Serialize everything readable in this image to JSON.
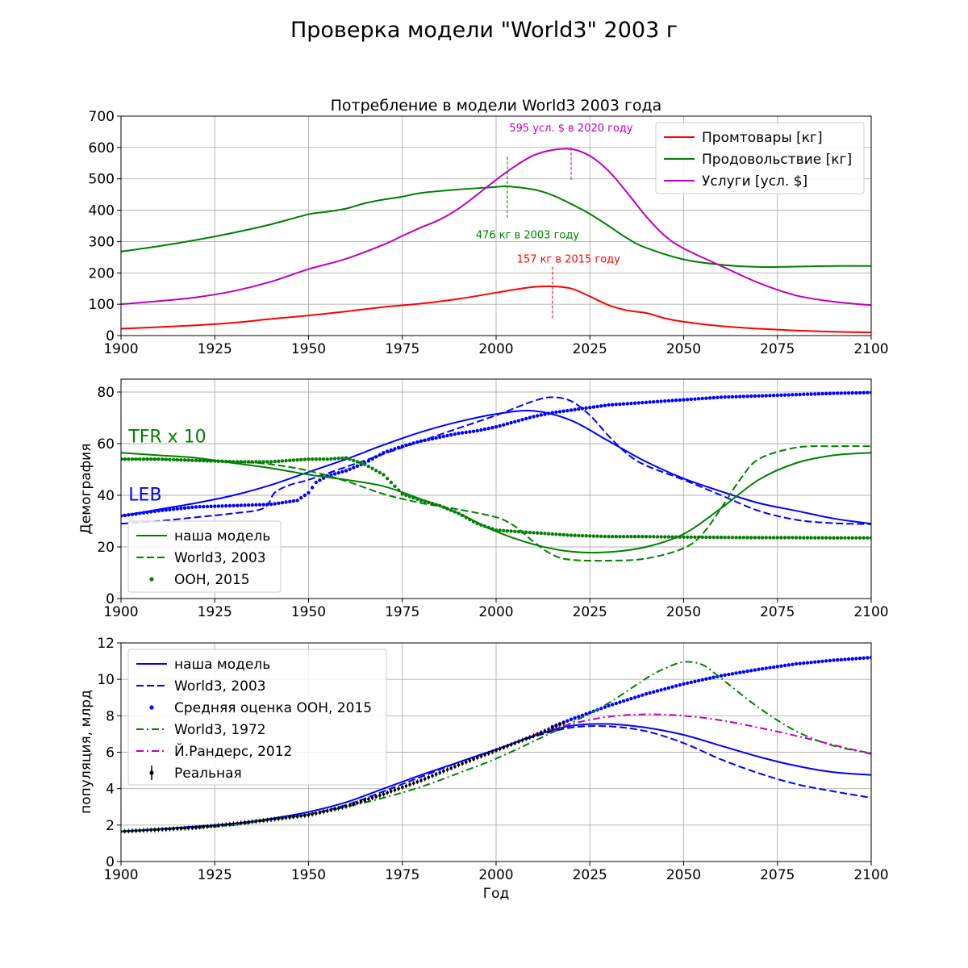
{
  "figure_title": "Проверка модели \"World3\" 2003 г",
  "chart_data": [
    {
      "type": "line",
      "title": "Потребление в модели World3 2003 года",
      "xlabel": "",
      "ylabel": "",
      "xlim": [
        1900,
        2100
      ],
      "ylim": [
        0,
        700
      ],
      "xticks": [
        1900,
        1925,
        1950,
        1975,
        2000,
        2025,
        2050,
        2075,
        2100
      ],
      "yticks": [
        0,
        100,
        200,
        300,
        400,
        500,
        600,
        700
      ],
      "grid": true,
      "legend_position": "top-right",
      "series": [
        {
          "name": "Промтовары [кг]",
          "color": "#ff0000",
          "style": "solid",
          "x": [
            1900,
            1910,
            1920,
            1930,
            1940,
            1950,
            1960,
            1970,
            1980,
            1990,
            2000,
            2005,
            2010,
            2015,
            2020,
            2025,
            2030,
            2035,
            2040,
            2045,
            2050,
            2060,
            2070,
            2080,
            2090,
            2100
          ],
          "y": [
            22,
            27,
            33,
            41,
            53,
            64,
            77,
            91,
            102,
            117,
            137,
            147,
            155,
            157,
            150,
            125,
            97,
            80,
            72,
            55,
            44,
            30,
            22,
            16,
            12,
            10
          ]
        },
        {
          "name": "Продовольствие [кг]",
          "color": "#008000",
          "style": "solid",
          "x": [
            1900,
            1910,
            1920,
            1930,
            1940,
            1950,
            1955,
            1960,
            1965,
            1970,
            1975,
            1980,
            1990,
            2000,
            2003,
            2010,
            2015,
            2020,
            2025,
            2030,
            2035,
            2040,
            2050,
            2060,
            2070,
            2080,
            2090,
            2100
          ],
          "y": [
            268,
            285,
            305,
            328,
            355,
            387,
            395,
            405,
            422,
            434,
            443,
            455,
            466,
            474,
            476,
            466,
            448,
            420,
            388,
            350,
            310,
            280,
            243,
            226,
            219,
            220,
            222,
            222
          ]
        },
        {
          "name": "Услуги [усл. $]",
          "color": "#bf00bf",
          "style": "solid",
          "x": [
            1900,
            1910,
            1920,
            1930,
            1940,
            1950,
            1960,
            1970,
            1975,
            1980,
            1985,
            1990,
            1995,
            2000,
            2005,
            2010,
            2015,
            2020,
            2025,
            2030,
            2035,
            2040,
            2045,
            2050,
            2060,
            2070,
            2080,
            2090,
            2100
          ],
          "y": [
            100,
            110,
            122,
            142,
            172,
            212,
            245,
            290,
            318,
            345,
            370,
            405,
            450,
            497,
            540,
            575,
            592,
            595,
            573,
            525,
            455,
            380,
            318,
            278,
            222,
            168,
            128,
            108,
            97
          ]
        }
      ],
      "annotations": [
        {
          "text": "595 усл. $ в 2020 году",
          "color": "#bf00bf",
          "x": 2020,
          "y": 595,
          "line_to": 497
        },
        {
          "text": "476 кг в 2003 году",
          "color": "#008000",
          "x": 2003,
          "y": 476,
          "line_from": 375,
          "line_to": 575
        },
        {
          "text": "157 кг в 2015 году",
          "color": "#ff0000",
          "x": 2015,
          "y": 157,
          "line_from": 55,
          "line_to": 222
        }
      ]
    },
    {
      "type": "line",
      "title": "",
      "xlabel": "",
      "ylabel": "Демография",
      "xlim": [
        1900,
        2100
      ],
      "ylim": [
        0,
        85
      ],
      "xticks": [
        1900,
        1925,
        1950,
        1975,
        2000,
        2025,
        2050,
        2075,
        2100
      ],
      "yticks": [
        0,
        20,
        40,
        60,
        80
      ],
      "grid": true,
      "legend_position": "bottom-left",
      "text_labels": [
        {
          "text": "TFR x 10",
          "color": "#008000",
          "x": 1902,
          "y": 60.5
        },
        {
          "text": "LEB",
          "color": "#0000ff",
          "x": 1902,
          "y": 38
        }
      ],
      "legend": [
        {
          "label": "наша модель",
          "style": "solid",
          "color": "#008000"
        },
        {
          "label": "World3, 2003",
          "style": "dashed",
          "color": "#008000"
        },
        {
          "label": "ООН, 2015",
          "style": "dots",
          "color": "#008000"
        }
      ],
      "series": [
        {
          "name": "",
          "group": "LEB наша модель",
          "color": "#0000ff",
          "style": "solid",
          "x": [
            1900,
            1910,
            1920,
            1930,
            1940,
            1950,
            1960,
            1970,
            1980,
            1990,
            2000,
            2010,
            2020,
            2030,
            2040,
            2050,
            2060,
            2070,
            2080,
            2090,
            2100
          ],
          "y": [
            32,
            34.5,
            37,
            40,
            44,
            49,
            54,
            59.5,
            64.5,
            68.5,
            71.5,
            72.7,
            69,
            61,
            53,
            46.5,
            41.5,
            37,
            34,
            31,
            29
          ]
        },
        {
          "name": "",
          "group": "LEB World3, 2003",
          "color": "#0000ff",
          "style": "dashed",
          "x": [
            1900,
            1910,
            1920,
            1930,
            1938,
            1941,
            1945,
            1950,
            1960,
            1970,
            1980,
            1990,
            2000,
            2010,
            2015,
            2020,
            2025,
            2030,
            2035,
            2040,
            2050,
            2060,
            2070,
            2080,
            2090,
            2100
          ],
          "y": [
            29,
            30,
            31.5,
            33,
            35,
            41,
            44,
            46,
            51,
            56,
            61,
            66,
            71,
            76.5,
            78,
            76.5,
            71,
            63,
            56,
            51.5,
            46,
            40,
            34,
            30.5,
            29.2,
            28.8
          ]
        },
        {
          "name": "",
          "group": "LEB ООН, 2015",
          "color": "#0000ff",
          "style": "dots",
          "x": [
            1900,
            1910,
            1920,
            1930,
            1940,
            1947,
            1950,
            1952,
            1955,
            1960,
            1965,
            1970,
            1975,
            1980,
            1985,
            1990,
            1995,
            2000,
            2005,
            2010,
            2015,
            2020,
            2030,
            2040,
            2050,
            2060,
            2070,
            2080,
            2090,
            2100
          ],
          "y": [
            32,
            34,
            35.5,
            36,
            36.5,
            38,
            41,
            45,
            47.5,
            49.5,
            52.5,
            56.5,
            59,
            61,
            62.5,
            64,
            65,
            66.5,
            68.5,
            70.5,
            72,
            73,
            75,
            76,
            77,
            78,
            78.5,
            79,
            79.5,
            79.8
          ]
        },
        {
          "name": "",
          "group": "TFR наша модель",
          "color": "#008000",
          "style": "solid",
          "x": [
            1900,
            1910,
            1920,
            1930,
            1940,
            1950,
            1960,
            1970,
            1980,
            1990,
            2000,
            2010,
            2020,
            2030,
            2040,
            2050,
            2060,
            2070,
            2080,
            2090,
            2100
          ],
          "y": [
            56.5,
            55.5,
            54.5,
            52.5,
            50.5,
            48,
            46,
            43.5,
            38.5,
            33,
            26,
            21,
            18.2,
            18,
            20,
            25,
            35,
            46,
            52.5,
            55.5,
            56.5
          ]
        },
        {
          "name": "",
          "group": "TFR World3, 2003",
          "color": "#008000",
          "style": "dashed",
          "x": [
            1900,
            1910,
            1920,
            1930,
            1940,
            1950,
            1960,
            1970,
            1980,
            1990,
            2000,
            2005,
            2010,
            2015,
            2020,
            2030,
            2040,
            2050,
            2055,
            2060,
            2065,
            2070,
            2080,
            2090,
            2100
          ],
          "y": [
            54,
            54,
            53.5,
            53,
            52,
            49.5,
            45.5,
            40.5,
            37,
            34.5,
            31.5,
            28,
            22,
            17,
            15,
            14.7,
            15.5,
            19.5,
            25,
            35,
            46,
            54,
            58.5,
            59,
            59
          ]
        },
        {
          "name": "",
          "group": "TFR ООН, 2015",
          "color": "#008000",
          "style": "dots",
          "x": [
            1900,
            1910,
            1920,
            1930,
            1940,
            1950,
            1955,
            1960,
            1965,
            1970,
            1975,
            1980,
            1985,
            1990,
            1995,
            2000,
            2005,
            2010,
            2015,
            2020,
            2030,
            2040,
            2050,
            2060,
            2070,
            2080,
            2090,
            2100
          ],
          "y": [
            54,
            54,
            53.5,
            53,
            53,
            54,
            54,
            54.5,
            52,
            48,
            40.5,
            38,
            36,
            33,
            29,
            26.5,
            26,
            25.5,
            25,
            24.5,
            24,
            24,
            23.8,
            23.7,
            23.6,
            23.6,
            23.5,
            23.5
          ]
        }
      ]
    },
    {
      "type": "line",
      "title": "",
      "xlabel": "Год",
      "ylabel": "популяция, млрд",
      "xlim": [
        1900,
        2100
      ],
      "ylim": [
        0,
        12
      ],
      "xticks": [
        1900,
        1925,
        1950,
        1975,
        2000,
        2025,
        2050,
        2075,
        2100
      ],
      "yticks": [
        0,
        2,
        4,
        6,
        8,
        10,
        12
      ],
      "grid": true,
      "legend_position": "top-left",
      "series": [
        {
          "name": "наша модель",
          "color": "#0000ff",
          "style": "solid",
          "x": [
            1900,
            1910,
            1920,
            1930,
            1940,
            1950,
            1960,
            1970,
            1980,
            1990,
            2000,
            2010,
            2020,
            2030,
            2040,
            2050,
            2060,
            2070,
            2080,
            2090,
            2100
          ],
          "y": [
            1.65,
            1.78,
            1.92,
            2.08,
            2.35,
            2.72,
            3.25,
            4.0,
            4.75,
            5.45,
            6.15,
            6.9,
            7.45,
            7.55,
            7.35,
            6.95,
            6.35,
            5.75,
            5.25,
            4.9,
            4.75
          ]
        },
        {
          "name": "World3, 2003",
          "color": "#0000ff",
          "style": "dashed",
          "x": [
            1900,
            1910,
            1920,
            1930,
            1940,
            1950,
            1960,
            1970,
            1980,
            1990,
            2000,
            2010,
            2020,
            2030,
            2040,
            2050,
            2060,
            2070,
            2080,
            2090,
            2100
          ],
          "y": [
            1.65,
            1.78,
            1.92,
            2.07,
            2.33,
            2.6,
            3.1,
            3.85,
            4.65,
            5.45,
            6.15,
            6.85,
            7.35,
            7.42,
            7.15,
            6.5,
            5.6,
            4.85,
            4.25,
            3.85,
            3.5
          ]
        },
        {
          "name": "Средняя оценка ООН, 2015",
          "color": "#0000ff",
          "style": "dots",
          "x": [
            2015,
            2020,
            2030,
            2040,
            2050,
            2060,
            2070,
            2080,
            2090,
            2100
          ],
          "y": [
            7.4,
            7.8,
            8.55,
            9.2,
            9.75,
            10.2,
            10.55,
            10.85,
            11.05,
            11.2
          ]
        },
        {
          "name": "World3, 1972",
          "color": "#008000",
          "style": "dashdot",
          "x": [
            1900,
            1910,
            1920,
            1930,
            1940,
            1950,
            1960,
            1970,
            1980,
            1990,
            2000,
            2010,
            2020,
            2030,
            2040,
            2045,
            2050,
            2055,
            2060,
            2070,
            2080,
            2090,
            2100
          ],
          "y": [
            1.65,
            1.75,
            1.85,
            2.0,
            2.3,
            2.6,
            3.0,
            3.5,
            4.1,
            4.85,
            5.65,
            6.6,
            7.6,
            8.7,
            10.05,
            10.6,
            10.95,
            10.8,
            10.05,
            8.45,
            7.15,
            6.35,
            5.95
          ]
        },
        {
          "name": "Й.Рандерс, 2012",
          "color": "#bf00bf",
          "style": "dashdot",
          "x": [
            2010,
            2020,
            2030,
            2040,
            2050,
            2060,
            2070,
            2080,
            2090,
            2100
          ],
          "y": [
            6.95,
            7.55,
            7.95,
            8.08,
            8.0,
            7.75,
            7.35,
            6.9,
            6.4,
            5.9
          ]
        },
        {
          "name": "Реальная",
          "color": "#000000",
          "style": "errorbar",
          "x": [
            1900,
            1910,
            1920,
            1930,
            1940,
            1950,
            1960,
            1970,
            1980,
            1990,
            2000,
            2010,
            2015,
            2018
          ],
          "y": [
            1.65,
            1.75,
            1.86,
            2.07,
            2.3,
            2.55,
            3.02,
            3.7,
            4.45,
            5.3,
            6.1,
            6.9,
            7.35,
            7.6
          ]
        }
      ]
    }
  ]
}
